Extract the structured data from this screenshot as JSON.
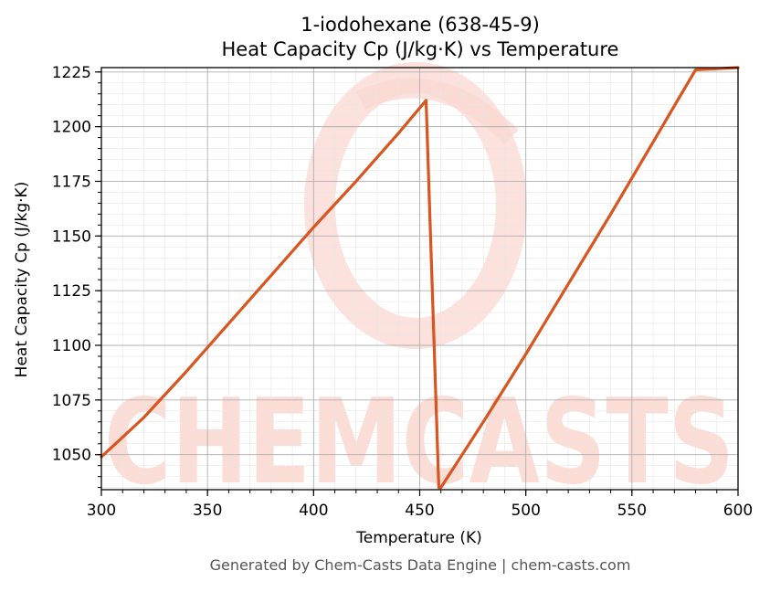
{
  "chart_data": {
    "type": "line",
    "title": "1-iodohexane (638-45-9)",
    "subtitle": "Heat Capacity Cp (J/kg·K) vs Temperature",
    "xlabel": "Temperature (K)",
    "ylabel": "Heat Capacity Cp (J/kg·K)",
    "xlim": [
      300,
      600
    ],
    "ylim": [
      1034,
      1227
    ],
    "x_ticks": [
      300,
      350,
      400,
      450,
      500,
      550,
      600
    ],
    "y_ticks": [
      1050,
      1075,
      1100,
      1125,
      1150,
      1175,
      1200,
      1225
    ],
    "grid": true,
    "series": [
      {
        "color": "#d9541e",
        "x": [
          300,
          320,
          340,
          360,
          380,
          400,
          420,
          440,
          453,
          459,
          460,
          480,
          500,
          520,
          540,
          560,
          580,
          600
        ],
        "y": [
          1049,
          1067,
          1088,
          1110,
          1132,
          1154,
          1175,
          1197,
          1212,
          1035,
          1035,
          1065,
          1096,
          1128,
          1160,
          1193,
          1226,
          1227
        ]
      }
    ]
  },
  "watermark": {
    "text": "CHEMCASTS"
  },
  "footer": {
    "text": "Generated by Chem-Casts Data Engine | chem-casts.com"
  }
}
